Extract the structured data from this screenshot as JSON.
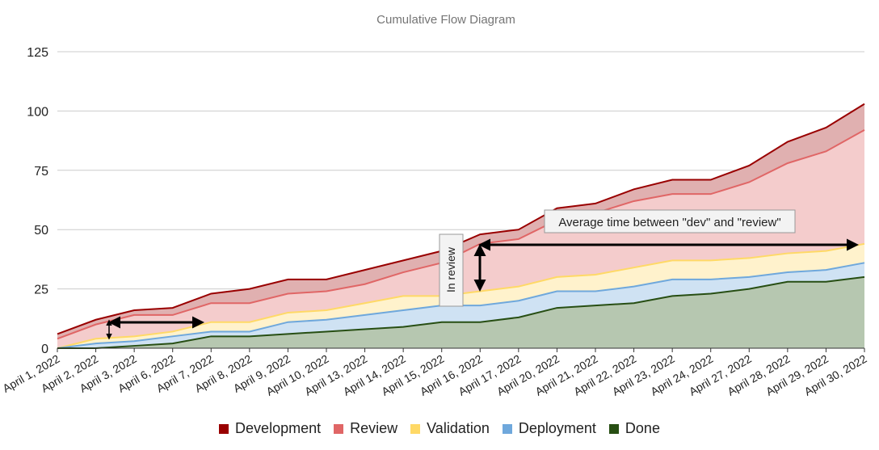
{
  "chart_data": {
    "type": "area",
    "stacked": false,
    "title": "Cumulative Flow Diagram",
    "xlabel": "",
    "ylabel": "",
    "ylim": [
      0,
      125
    ],
    "yticks": [
      0,
      25,
      50,
      75,
      100,
      125
    ],
    "grid": true,
    "legend_position": "bottom",
    "categories": [
      "April 1, 2022",
      "April 2, 2022",
      "April 3, 2022",
      "April 6, 2022",
      "April 7, 2022",
      "April 8, 2022",
      "April 9, 2022",
      "April 10, 2022",
      "April 13, 2022",
      "April 14, 2022",
      "April 15, 2022",
      "April 16, 2022",
      "April 17, 2022",
      "April 20, 2022",
      "April 21, 2022",
      "April 22, 2022",
      "April 23, 2022",
      "April 24, 2022",
      "April 27, 2022",
      "April 28, 2022",
      "April 29, 2022",
      "April 30, 2022"
    ],
    "series": [
      {
        "name": "Development",
        "color": "#990000",
        "fill": "#e0b0b0",
        "values": [
          6,
          12,
          16,
          17,
          23,
          25,
          29,
          29,
          33,
          37,
          41,
          48,
          50,
          59,
          61,
          67,
          71,
          71,
          77,
          87,
          93,
          103
        ]
      },
      {
        "name": "Review",
        "color": "#e06666",
        "fill": "#f4cccc",
        "values": [
          4,
          10,
          14,
          14,
          19,
          19,
          23,
          24,
          27,
          32,
          36,
          44,
          46,
          54,
          57,
          62,
          65,
          65,
          70,
          78,
          83,
          92
        ]
      },
      {
        "name": "Validation",
        "color": "#ffd966",
        "fill": "#fff2cc",
        "values": [
          0,
          4,
          5,
          7,
          11,
          11,
          15,
          16,
          19,
          22,
          22,
          24,
          26,
          30,
          31,
          34,
          37,
          37,
          38,
          40,
          41,
          44
        ]
      },
      {
        "name": "Deployment",
        "color": "#6fa8dc",
        "fill": "#cfe2f3",
        "values": [
          0,
          2,
          3,
          5,
          7,
          7,
          11,
          12,
          14,
          16,
          18,
          18,
          20,
          24,
          24,
          26,
          29,
          29,
          30,
          32,
          33,
          36
        ]
      },
      {
        "name": "Done",
        "color": "#274e13",
        "fill": "#b6c7b0",
        "values": [
          0,
          0,
          1,
          2,
          5,
          5,
          6,
          7,
          8,
          9,
          11,
          11,
          13,
          17,
          18,
          19,
          22,
          23,
          25,
          28,
          28,
          30
        ]
      }
    ],
    "annotations": {
      "avg_label": "Average time between \"dev\" and \"review\"",
      "in_review_label": "In review"
    }
  }
}
